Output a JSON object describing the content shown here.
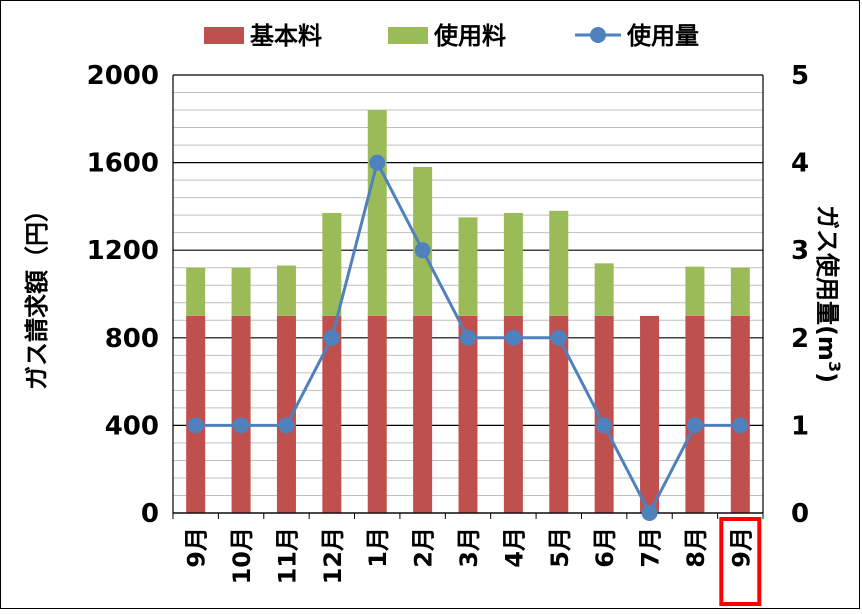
{
  "chart_data": {
    "type": "bar+line",
    "categories": [
      "9月",
      "10月",
      "11月",
      "12月",
      "1月",
      "2月",
      "3月",
      "4月",
      "5月",
      "6月",
      "7月",
      "8月",
      "9月"
    ],
    "series": [
      {
        "name": "基本料",
        "kind": "stacked-bar",
        "axis": "left",
        "color": "#c0504d",
        "values": [
          900,
          900,
          900,
          900,
          900,
          900,
          900,
          900,
          900,
          900,
          900,
          900,
          900
        ]
      },
      {
        "name": "使用料",
        "kind": "stacked-bar",
        "axis": "left",
        "color": "#9bbb59",
        "values": [
          220,
          220,
          230,
          470,
          940,
          680,
          450,
          470,
          480,
          240,
          0,
          225,
          220
        ]
      },
      {
        "name": "使用量",
        "kind": "line",
        "axis": "right",
        "color": "#4f81bd",
        "values": [
          1,
          1,
          1,
          2,
          4,
          3,
          2,
          2,
          2,
          1,
          0,
          1,
          1
        ]
      }
    ],
    "ylabel": "ガス請求額（円）",
    "y2label_main": "ガス使用量(m",
    "y2label_sup": "3",
    "y2label_close": ")",
    "ylim": [
      0,
      2000
    ],
    "y2lim": [
      0,
      5
    ],
    "yticks": [
      "0",
      "400",
      "800",
      "1200",
      "1600",
      "2000"
    ],
    "y2ticks": [
      "0",
      "1",
      "2",
      "3",
      "4",
      "5"
    ],
    "highlight_category_index": 12,
    "highlight_color": "#ff0000",
    "grid": true,
    "legend_position": "top"
  }
}
